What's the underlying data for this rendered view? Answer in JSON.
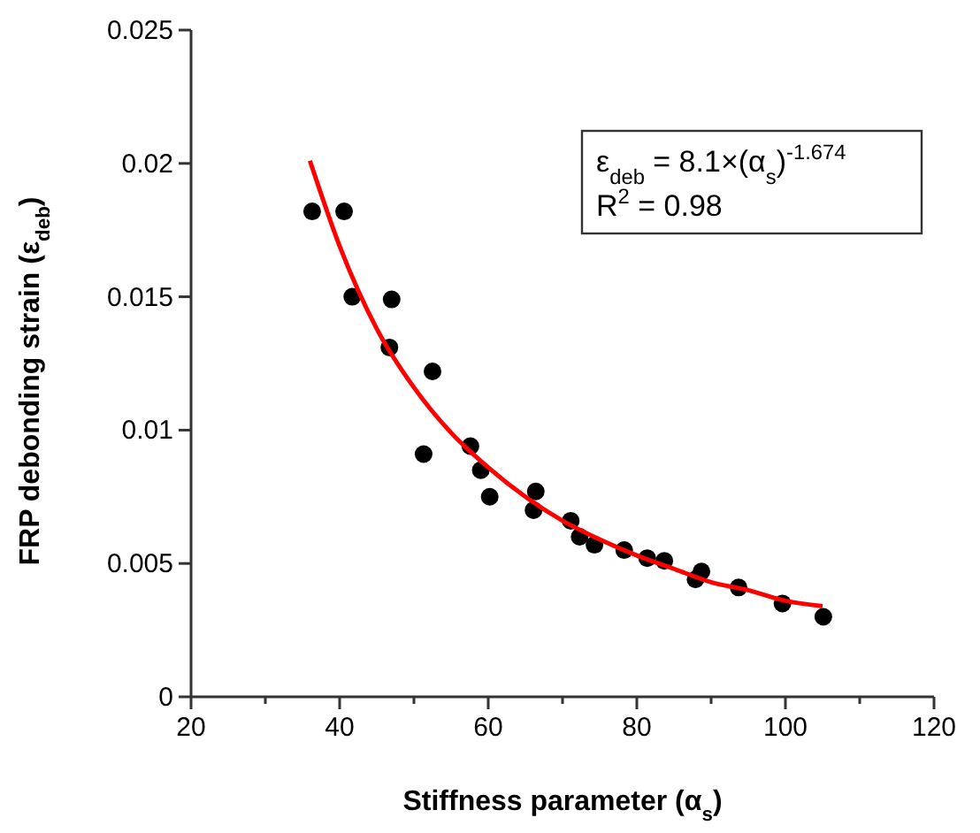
{
  "chart_data": {
    "type": "scatter",
    "xlabel": "Stiffness parameter (α$_{s}$)",
    "ylabel": "FRP debonding strain (ε$_{deb}$)",
    "xlim": [
      20,
      120
    ],
    "ylim": [
      0,
      0.025
    ],
    "xticks": [
      20,
      {
        "value": 30,
        "label": null
      },
      40,
      {
        "value": 50,
        "label": null
      },
      60,
      {
        "value": 70,
        "label": null
      },
      80,
      {
        "value": 90,
        "label": null
      },
      100,
      {
        "value": 110,
        "label": null
      },
      120
    ],
    "yticks": [
      0,
      0.005,
      0.01,
      0.015,
      0.02,
      0.025
    ],
    "marker": "circle",
    "annotations": [
      "ε$_{deb}$ = 8.1×(α$_{s}$)$^{-1.674}$",
      "R$^{2}$ = 0.98"
    ],
    "series": [
      {
        "color": "#000000",
        "x": [
          36.3,
          40.6,
          41.7,
          47.0,
          46.7,
          52.5,
          51.3,
          57.6,
          59.0,
          60.2,
          66.4,
          66.1,
          71.1,
          72.3,
          74.3,
          78.3,
          81.4,
          83.7,
          87.9,
          88.7,
          93.7,
          99.6,
          105.1
        ],
        "values": [
          0.0182,
          0.0182,
          0.015,
          0.0149,
          0.0131,
          0.0122,
          0.0091,
          0.0094,
          0.0085,
          0.0075,
          0.0077,
          0.007,
          0.0066,
          0.006,
          0.0057,
          0.0055,
          0.0052,
          0.0051,
          0.0044,
          0.0047,
          0.0041,
          0.0035,
          0.003
        ]
      },
      {
        "type": "line",
        "color": "#ff0000",
        "marker": "none",
        "x": [
          36,
          40,
          45,
          50,
          55,
          60,
          65,
          70,
          75,
          80,
          85,
          90,
          95,
          100,
          105
        ],
        "values": [
          0.0201,
          0.0169,
          0.0138,
          0.0116,
          0.0099,
          0.0086,
          0.0075,
          0.0066,
          0.0059,
          0.0053,
          0.0048,
          0.0043,
          0.004,
          0.0036,
          0.0034
        ]
      }
    ]
  }
}
